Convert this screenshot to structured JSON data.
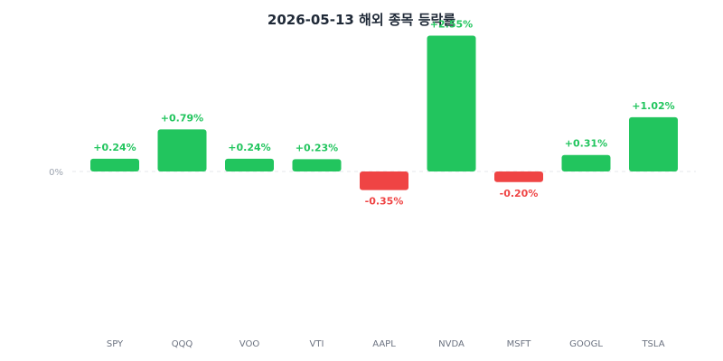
{
  "chart_data": {
    "type": "bar",
    "title": "2026-05-13 해외 종목 등락률",
    "categories": [
      "SPY",
      "QQQ",
      "VOO",
      "VTI",
      "AAPL",
      "NVDA",
      "MSFT",
      "GOOGL",
      "TSLA"
    ],
    "values": [
      0.24,
      0.79,
      0.24,
      0.23,
      -0.35,
      2.55,
      -0.2,
      0.31,
      1.02
    ],
    "value_labels": [
      "+0.24%",
      "+0.79%",
      "+0.24%",
      "+0.23%",
      "-0.35%",
      "+2.55%",
      "-0.20%",
      "+0.31%",
      "+1.02%"
    ],
    "y_tick_labels": [
      "0%"
    ],
    "xlabel": "",
    "ylabel": "",
    "ylim": [
      -3.0,
      3.0
    ],
    "grid": false,
    "legend": "none",
    "colors": {
      "positive": "#22c55e",
      "negative": "#ef4444",
      "baseline": "#e5e7eb"
    }
  }
}
